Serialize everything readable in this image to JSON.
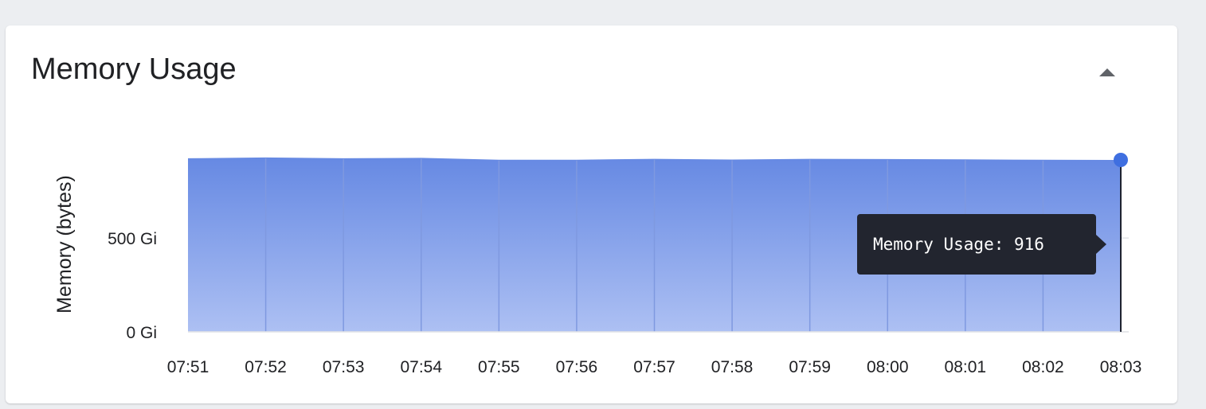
{
  "panel": {
    "title": "Memory Usage",
    "collapse_icon": "triangle-up-icon"
  },
  "tooltip": {
    "label": "Memory Usage",
    "value": "916",
    "text": "Memory Usage: 916"
  },
  "colors": {
    "area_top": "#6689e3",
    "area_bottom": "#adc0f3",
    "marker": "#3f6fe0",
    "grid": "#e3e4e8",
    "vgrid_on_area": "#7f99e0",
    "tooltip_bg": "#22252f"
  },
  "chart_data": {
    "type": "area",
    "title": "Memory Usage",
    "ylabel": "Memory (bytes)",
    "xlabel": "",
    "y_unit": "Gi",
    "ylim": [
      0,
      916
    ],
    "y_ticks": [
      0,
      500
    ],
    "y_tick_labels": [
      "0 Gi",
      "500 Gi"
    ],
    "grid": true,
    "x": [
      "07:51",
      "07:52",
      "07:53",
      "07:54",
      "07:55",
      "07:56",
      "07:57",
      "07:58",
      "07:59",
      "08:00",
      "08:01",
      "08:02",
      "08:03"
    ],
    "series": [
      {
        "values": [
          925,
          929,
          925,
          927,
          917,
          917,
          922,
          918,
          922,
          921,
          919,
          917,
          916
        ]
      }
    ],
    "highlighted_point": {
      "x": "08:03",
      "y": 916
    }
  }
}
